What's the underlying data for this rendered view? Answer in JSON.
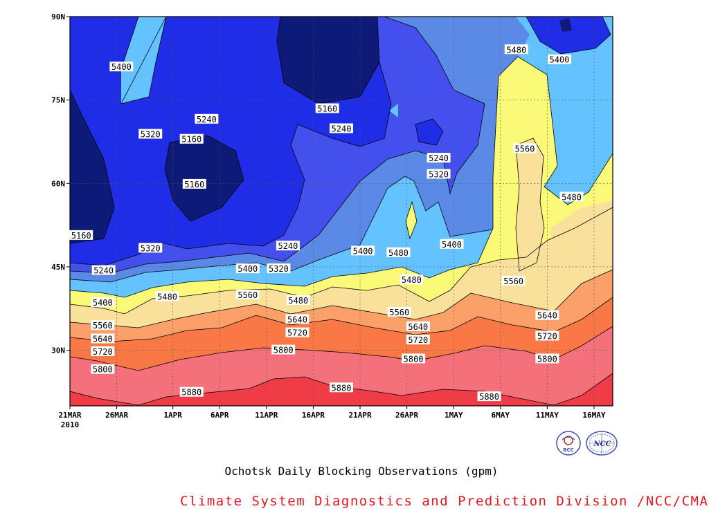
{
  "chart_data": {
    "type": "heatmap",
    "title": "Ochotsk Daily Blocking Observations (gpm)",
    "credit": "Climate System Diagnostics and Prediction Division /NCC/CMA",
    "x_ticks": [
      "21MAR",
      "26MAR",
      "1APR",
      "6APR",
      "11APR",
      "16APR",
      "21APR",
      "26APR",
      "1MAY",
      "6MAY",
      "11MAY",
      "16MAY"
    ],
    "x_year_label": "2010",
    "y_ticks": [
      "30N",
      "45N",
      "60N",
      "75N",
      "90N"
    ],
    "xlim_days": [
      0,
      58
    ],
    "ylim_lat": [
      20,
      90
    ],
    "grid": true,
    "contour_levels": [
      5160,
      5240,
      5320,
      5400,
      5480,
      5560,
      5640,
      5720,
      5800,
      5880
    ],
    "colors": {
      "below_5160": "#0d1a78",
      "5160_5240": "#1f2ee6",
      "5240_5320": "#4450ee",
      "5320_5400": "#5a8ae6",
      "5400_5480": "#64c3ff",
      "5480_5560": "#fafa78",
      "5560_5640": "#fae19b",
      "5640_5720": "#fca06a",
      "5720_5800": "#fa7846",
      "5800_5880": "#f4707a",
      "above_5880": "#f03c46"
    },
    "contour_labels": [
      {
        "v": "5400",
        "x": 5.5,
        "y": 80.9
      },
      {
        "v": "5320",
        "x": 8.6,
        "y": 68.8
      },
      {
        "v": "5240",
        "x": 14.6,
        "y": 71.5
      },
      {
        "v": "5160",
        "x": 13.0,
        "y": 67.9
      },
      {
        "v": "5160",
        "x": 13.3,
        "y": 59.8
      },
      {
        "v": "5160",
        "x": 1.2,
        "y": 50.6
      },
      {
        "v": "5240",
        "x": 3.6,
        "y": 44.3
      },
      {
        "v": "5320",
        "x": 8.6,
        "y": 48.3
      },
      {
        "v": "5240",
        "x": 23.3,
        "y": 48.7
      },
      {
        "v": "5400",
        "x": 19.0,
        "y": 44.6
      },
      {
        "v": "5320",
        "x": 22.3,
        "y": 44.6
      },
      {
        "v": "5160",
        "x": 27.5,
        "y": 73.4
      },
      {
        "v": "5240",
        "x": 29.0,
        "y": 69.8
      },
      {
        "v": "5400",
        "x": 31.3,
        "y": 47.8
      },
      {
        "v": "5480",
        "x": 35.1,
        "y": 47.5
      },
      {
        "v": "5240",
        "x": 39.4,
        "y": 64.5
      },
      {
        "v": "5320",
        "x": 39.4,
        "y": 61.6
      },
      {
        "v": "5400",
        "x": 40.8,
        "y": 49.0
      },
      {
        "v": "5480",
        "x": 47.7,
        "y": 84.0
      },
      {
        "v": "5400",
        "x": 52.3,
        "y": 82.2
      },
      {
        "v": "5560",
        "x": 48.6,
        "y": 66.2
      },
      {
        "v": "5480",
        "x": 53.6,
        "y": 57.5
      },
      {
        "v": "5560",
        "x": 47.4,
        "y": 42.4
      },
      {
        "v": "5400",
        "x": 3.5,
        "y": 38.5
      },
      {
        "v": "5480",
        "x": 10.4,
        "y": 39.6
      },
      {
        "v": "5560",
        "x": 19.0,
        "y": 39.9
      },
      {
        "v": "5480",
        "x": 24.4,
        "y": 38.9
      },
      {
        "v": "5560",
        "x": 35.2,
        "y": 36.8
      },
      {
        "v": "5480",
        "x": 36.5,
        "y": 42.6
      },
      {
        "v": "5560",
        "x": 3.5,
        "y": 34.4
      },
      {
        "v": "5640",
        "x": 24.3,
        "y": 35.5
      },
      {
        "v": "5640",
        "x": 37.2,
        "y": 34.2
      },
      {
        "v": "5640",
        "x": 51.0,
        "y": 36.2
      },
      {
        "v": "5640",
        "x": 3.5,
        "y": 32.0
      },
      {
        "v": "5720",
        "x": 24.3,
        "y": 33.1
      },
      {
        "v": "5720",
        "x": 37.2,
        "y": 31.8
      },
      {
        "v": "5720",
        "x": 51.0,
        "y": 32.5
      },
      {
        "v": "5720",
        "x": 3.5,
        "y": 29.7
      },
      {
        "v": "5800",
        "x": 22.8,
        "y": 30.0
      },
      {
        "v": "5800",
        "x": 36.7,
        "y": 28.4
      },
      {
        "v": "5800",
        "x": 51.0,
        "y": 28.4
      },
      {
        "v": "5800",
        "x": 3.5,
        "y": 26.5
      },
      {
        "v": "5880",
        "x": 13.0,
        "y": 22.4
      },
      {
        "v": "5880",
        "x": 29.0,
        "y": 23.2
      },
      {
        "v": "5880",
        "x": 44.8,
        "y": 21.6
      }
    ]
  }
}
